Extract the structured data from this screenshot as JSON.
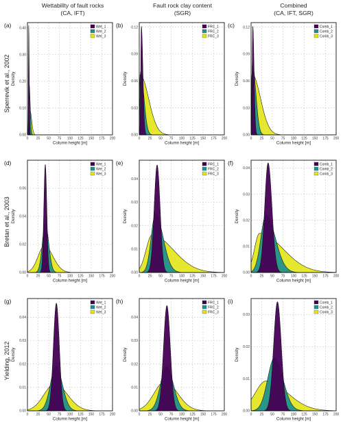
{
  "figure": {
    "column_titles": [
      [
        "Wettability of fault rocks",
        "(CA, IFT)"
      ],
      [
        "Fault rock clay content",
        "(SGR)"
      ],
      [
        "Combined",
        "(CA, IFT, SGR)"
      ]
    ],
    "row_labels": [
      "Sperrevik et al., 2002",
      "Bretan et al., 2003",
      "Yielding, 2012"
    ]
  },
  "colors": {
    "series1": "#440154",
    "series2": "#21908C",
    "series3": "#E3E418"
  },
  "chart_data": [
    {
      "panel": "(a)",
      "type": "area",
      "xlabel": "Column height [m]",
      "ylabel": "Density",
      "xlim": [
        0,
        200
      ],
      "xticks": [
        0,
        25,
        50,
        75,
        100,
        125,
        150,
        175,
        200
      ],
      "ylim": [
        0,
        0.42
      ],
      "yticks": [
        0.0,
        0.1,
        0.2,
        0.3,
        0.4
      ],
      "legend": "top-right",
      "grid": true,
      "series": [
        {
          "name": "Wet_1",
          "peak_x": 3,
          "peak_y": 0.41,
          "sigma_left": 0.6,
          "sigma_right": 1.2
        },
        {
          "name": "Wet_2",
          "peak_x": 4,
          "peak_y": 0.19,
          "sigma_left": 1.2,
          "sigma_right": 2.5
        },
        {
          "name": "Wet_3",
          "peak_x": 6,
          "peak_y": 0.09,
          "sigma_left": 2.5,
          "sigma_right": 4
        }
      ]
    },
    {
      "panel": "(b)",
      "type": "area",
      "xlabel": "Column height [m]",
      "ylabel": "Density",
      "xlim": [
        0,
        200
      ],
      "xticks": [
        0,
        25,
        50,
        75,
        100,
        125,
        150,
        175,
        200
      ],
      "ylim": [
        0,
        0.125
      ],
      "yticks": [
        0.0,
        0.03,
        0.06,
        0.09,
        0.12
      ],
      "legend": "top-right",
      "grid": true,
      "series": [
        {
          "name": "FRC_1",
          "peak_x": 5,
          "peak_y": 0.121,
          "sigma_left": 1.5,
          "sigma_right": 3.5
        },
        {
          "name": "FRC_2",
          "peak_x": 3,
          "peak_y": 0.07,
          "sigma_left": 1.5,
          "sigma_right": 8
        },
        {
          "name": "FRC_3",
          "peak_x": 2,
          "peak_y": 0.067,
          "sigma_left": 1.5,
          "sigma_right": 20
        }
      ]
    },
    {
      "panel": "(c)",
      "type": "area",
      "xlabel": "Column height [m]",
      "ylabel": "Density",
      "xlim": [
        0,
        200
      ],
      "xticks": [
        0,
        25,
        50,
        75,
        100,
        125,
        150,
        175,
        200
      ],
      "ylim": [
        0,
        0.125
      ],
      "yticks": [
        0.0,
        0.03,
        0.06,
        0.09,
        0.12
      ],
      "legend": "top-right",
      "grid": true,
      "series": [
        {
          "name": "Comb_1",
          "peak_x": 4,
          "peak_y": 0.121,
          "sigma_left": 1.5,
          "sigma_right": 3
        },
        {
          "name": "Comb_2",
          "peak_x": 3,
          "peak_y": 0.08,
          "sigma_left": 1.5,
          "sigma_right": 8
        },
        {
          "name": "Comb_3",
          "peak_x": 2,
          "peak_y": 0.068,
          "sigma_left": 1.5,
          "sigma_right": 20
        }
      ]
    },
    {
      "panel": "(d)",
      "type": "area",
      "xlabel": "Column height [m]",
      "ylabel": "Density",
      "xlim": [
        0,
        200
      ],
      "xticks": [
        0,
        25,
        50,
        75,
        100,
        125,
        150,
        175,
        200
      ],
      "ylim": [
        0,
        0.08
      ],
      "yticks": [
        0.0,
        0.02,
        0.04,
        0.06
      ],
      "legend": "top-right",
      "grid": true,
      "series": [
        {
          "name": "Wet_1",
          "peak_x": 42,
          "peak_y": 0.077,
          "sigma_left": 3.5,
          "sigma_right": 3.5
        },
        {
          "name": "Wet_2",
          "peak_x": 42,
          "peak_y": 0.035,
          "sigma_left": 7,
          "sigma_right": 8
        },
        {
          "name": "Wet_3",
          "peak_x": 40,
          "peak_y": 0.019,
          "sigma_left": 15,
          "sigma_right": 20
        }
      ]
    },
    {
      "panel": "(e)",
      "type": "area",
      "xlabel": "Column height [m]",
      "ylabel": "Density",
      "xlim": [
        0,
        200
      ],
      "xticks": [
        0,
        25,
        50,
        75,
        100,
        125,
        150,
        175,
        200
      ],
      "ylim": [
        0,
        0.048
      ],
      "yticks": [
        0.0,
        0.01,
        0.02,
        0.03,
        0.04
      ],
      "legend": "top-right",
      "grid": true,
      "series": [
        {
          "name": "FRC_1",
          "peak_x": 42,
          "peak_y": 0.046,
          "sigma_left": 7,
          "sigma_right": 7
        },
        {
          "name": "FRC_2",
          "peak_x": 38,
          "peak_y": 0.025,
          "sigma_left": 10,
          "sigma_right": 18
        },
        {
          "name": "FRC_3",
          "peak_x": 30,
          "peak_y": 0.016,
          "sigma_left": 14,
          "sigma_right": 50
        }
      ]
    },
    {
      "panel": "(f)",
      "type": "area",
      "xlabel": "Column height [m]",
      "ylabel": "Density",
      "xlim": [
        0,
        200
      ],
      "xticks": [
        0,
        25,
        50,
        75,
        100,
        125,
        150,
        175,
        200
      ],
      "ylim": [
        0,
        0.043
      ],
      "yticks": [
        0.0,
        0.01,
        0.02,
        0.03,
        0.04
      ],
      "legend": "top-right",
      "grid": true,
      "series": [
        {
          "name": "Comb_1",
          "peak_x": 40,
          "peak_y": 0.042,
          "sigma_left": 8,
          "sigma_right": 9
        },
        {
          "name": "Comb_2",
          "peak_x": 35,
          "peak_y": 0.022,
          "sigma_left": 12,
          "sigma_right": 22
        },
        {
          "name": "Comb_3",
          "peak_x": 20,
          "peak_y": 0.015,
          "sigma_left": 12,
          "sigma_right": 55
        }
      ]
    },
    {
      "panel": "(g)",
      "type": "area",
      "xlabel": "Column height [m]",
      "ylabel": "Density",
      "xlim": [
        0,
        200
      ],
      "xticks": [
        0,
        25,
        50,
        75,
        100,
        125,
        150,
        175,
        200
      ],
      "ylim": [
        0,
        0.048
      ],
      "yticks": [
        0.0,
        0.01,
        0.02,
        0.03,
        0.04
      ],
      "legend": "top-right",
      "grid": true,
      "series": [
        {
          "name": "Wet_1",
          "peak_x": 68,
          "peak_y": 0.046,
          "sigma_left": 7,
          "sigma_right": 7
        },
        {
          "name": "Wet_2",
          "peak_x": 67,
          "peak_y": 0.019,
          "sigma_left": 13,
          "sigma_right": 15
        },
        {
          "name": "Wet_3",
          "peak_x": 64,
          "peak_y": 0.0115,
          "sigma_left": 25,
          "sigma_right": 30
        }
      ]
    },
    {
      "panel": "(h)",
      "type": "area",
      "xlabel": "Column height [m]",
      "ylabel": "Density",
      "xlim": [
        0,
        200
      ],
      "xticks": [
        0,
        25,
        50,
        75,
        100,
        125,
        150,
        175,
        200
      ],
      "ylim": [
        0,
        0.048
      ],
      "yticks": [
        0.0,
        0.01,
        0.02,
        0.03,
        0.04
      ],
      "legend": "top-right",
      "grid": true,
      "series": [
        {
          "name": "FRC_1",
          "peak_x": 65,
          "peak_y": 0.045,
          "sigma_left": 8,
          "sigma_right": 8
        },
        {
          "name": "FRC_2",
          "peak_x": 64,
          "peak_y": 0.019,
          "sigma_left": 14,
          "sigma_right": 16
        },
        {
          "name": "FRC_3",
          "peak_x": 60,
          "peak_y": 0.0125,
          "sigma_left": 25,
          "sigma_right": 30
        }
      ]
    },
    {
      "panel": "(i)",
      "type": "area",
      "xlabel": "Column height [m]",
      "ylabel": "Density",
      "xlim": [
        0,
        200
      ],
      "xticks": [
        0,
        25,
        50,
        75,
        100,
        125,
        150,
        175,
        200
      ],
      "ylim": [
        0,
        0.035
      ],
      "yticks": [
        0.0,
        0.01,
        0.02,
        0.03
      ],
      "legend": "top-right",
      "grid": true,
      "series": [
        {
          "name": "Comb_1",
          "peak_x": 62,
          "peak_y": 0.034,
          "sigma_left": 9,
          "sigma_right": 9
        },
        {
          "name": "Comb_2",
          "peak_x": 55,
          "peak_y": 0.0165,
          "sigma_left": 16,
          "sigma_right": 20
        },
        {
          "name": "Comb_3",
          "peak_x": 35,
          "peak_y": 0.0093,
          "sigma_left": 25,
          "sigma_right": 50
        }
      ]
    }
  ]
}
